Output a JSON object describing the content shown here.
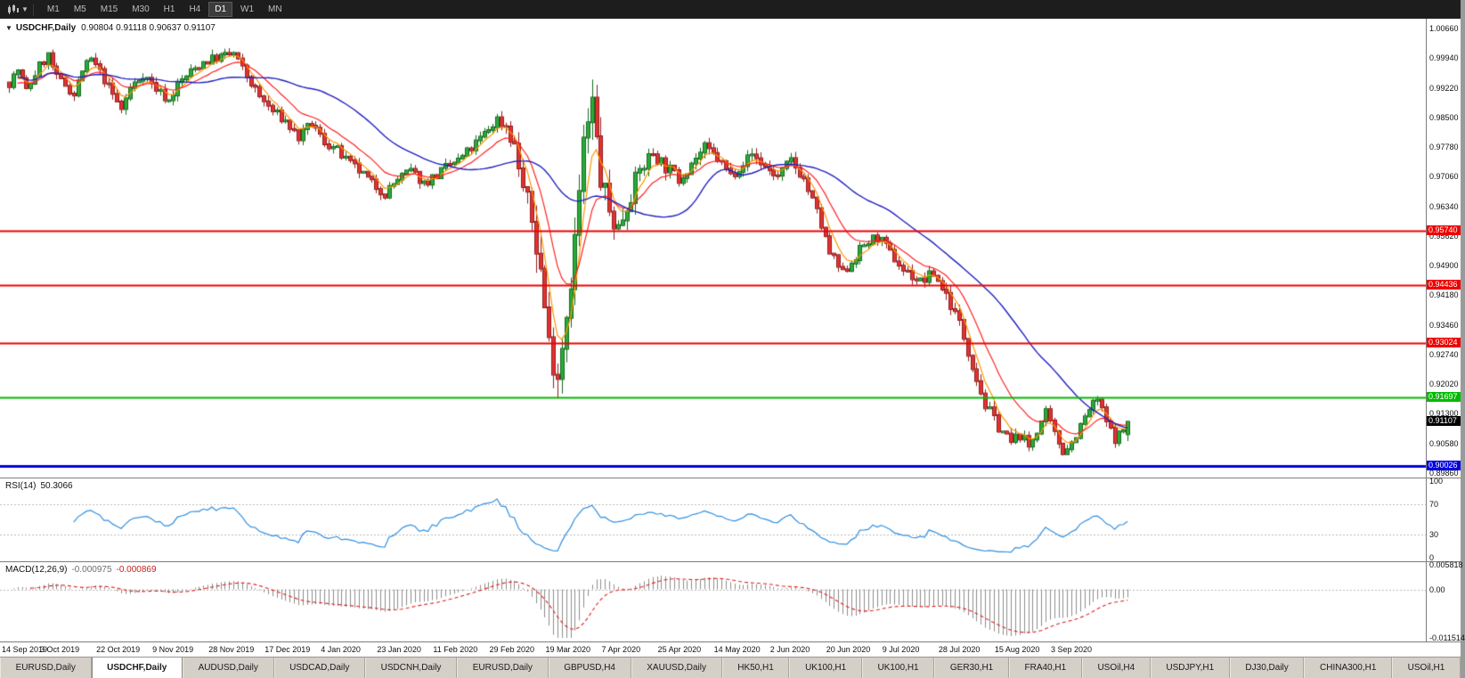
{
  "toolbar": {
    "timeframes": [
      {
        "label": "M1",
        "active": false
      },
      {
        "label": "M5",
        "active": false
      },
      {
        "label": "M15",
        "active": false
      },
      {
        "label": "M30",
        "active": false
      },
      {
        "label": "H1",
        "active": false
      },
      {
        "label": "H4",
        "active": false
      },
      {
        "label": "D1",
        "active": true
      },
      {
        "label": "W1",
        "active": false
      },
      {
        "label": "MN",
        "active": false
      }
    ]
  },
  "chart": {
    "title": "USDCHF,Daily",
    "ohlc": "0.90804 0.91118 0.90637 0.91107",
    "axis_top_price": 1.0066,
    "axis_price_step": 0.0072,
    "price_axis_labels": [
      "1.00660",
      "0.99940",
      "0.99220",
      "0.98500",
      "0.97780",
      "0.97060",
      "0.96340",
      "0.95620",
      "0.94900",
      "0.94180",
      "0.93460",
      "0.92740",
      "0.92020",
      "0.91300",
      "0.90580",
      "0.89860"
    ],
    "hlines": [
      {
        "price": 0.9574,
        "label": "0.95740",
        "color": "#ee0000",
        "width": 2
      },
      {
        "price": 0.94436,
        "label": "0.94436",
        "color": "#ee0000",
        "width": 2
      },
      {
        "price": 0.93024,
        "label": "0.93024",
        "color": "#ee0000",
        "width": 2
      },
      {
        "price": 0.91697,
        "label": "0.91697",
        "color": "#00ba00",
        "width": 2
      },
      {
        "price": 0.90026,
        "label": "0.90026",
        "color": "#0000dd",
        "width": 3
      }
    ],
    "current_price": {
      "label": "0.91107",
      "value": 0.91107,
      "bg": "#000000"
    },
    "colors": {
      "up_fill": "#2aab38",
      "up_border": "#14691e",
      "down_fill": "#e23232",
      "down_border": "#8f1d1d",
      "ma_fast": "#ff9500",
      "ma_mid": "#ff2222",
      "ma_slow": "#2020c0"
    }
  },
  "rsi": {
    "label": "RSI(14)",
    "value": "50.3066",
    "color": "#2f8fe0",
    "range": [
      0,
      100
    ],
    "levels": [
      70,
      30
    ],
    "axis": [
      {
        "label": "100",
        "value": 100
      },
      {
        "label": "70",
        "value": 70
      },
      {
        "label": "30",
        "value": 30
      },
      {
        "label": "0",
        "value": 0
      }
    ]
  },
  "macd": {
    "label": "MACD(12,26,9)",
    "value_main": "-0.000975",
    "value_signal": "-0.000869",
    "hist_color": "#8c8c8c",
    "signal_color": "#dd2020",
    "range": {
      "max": 0.005818,
      "min": -0.011514
    },
    "axis": [
      {
        "label": "0.005818",
        "value": 0.005818
      },
      {
        "label": "0.00",
        "value": 0
      },
      {
        "label": "-0.011514",
        "value": -0.011514
      }
    ]
  },
  "date_axis": [
    "14 Sep 2019",
    "3 Oct 2019",
    "22 Oct 2019",
    "9 Nov 2019",
    "28 Nov 2019",
    "17 Dec 2019",
    "4 Jan 2020",
    "23 Jan 2020",
    "11 Feb 2020",
    "29 Feb 2020",
    "19 Mar 2020",
    "7 Apr 2020",
    "25 Apr 2020",
    "14 May 2020",
    "2 Jun 2020",
    "20 Jun 2020",
    "9 Jul 2020",
    "28 Jul 2020",
    "15 Aug 2020",
    "3 Sep 2020"
  ],
  "tabs": [
    {
      "label": "EURUSD,Daily",
      "active": false
    },
    {
      "label": "USDCHF,Daily",
      "active": true
    },
    {
      "label": "AUDUSD,Daily",
      "active": false
    },
    {
      "label": "USDCAD,Daily",
      "active": false
    },
    {
      "label": "USDCNH,Daily",
      "active": false
    },
    {
      "label": "EURUSD,Daily",
      "active": false
    },
    {
      "label": "GBPUSD,H4",
      "active": false
    },
    {
      "label": "XAUUSD,Daily",
      "active": false
    },
    {
      "label": "HK50,H1",
      "active": false
    },
    {
      "label": "UK100,H1",
      "active": false
    },
    {
      "label": "UK100,H1",
      "active": false
    },
    {
      "label": "GER30,H1",
      "active": false
    },
    {
      "label": "FRA40,H1",
      "active": false
    },
    {
      "label": "USOil,H4",
      "active": false
    },
    {
      "label": "USDJPY,H1",
      "active": false
    },
    {
      "label": "DJ30,Daily",
      "active": false
    },
    {
      "label": "CHINA300,H1",
      "active": false
    },
    {
      "label": "USOil,H1",
      "active": false
    }
  ],
  "chart_data": {
    "type": "candlestick",
    "symbol": "USDCHF",
    "timeframe": "Daily",
    "candle_count": 260,
    "last_candle": {
      "open": 0.90804,
      "high": 0.91118,
      "low": 0.90637,
      "close": 0.91107
    },
    "close_waypoints": [
      [
        0,
        0.9935
      ],
      [
        2,
        0.9965
      ],
      [
        4,
        0.9915
      ],
      [
        7,
        0.9975
      ],
      [
        9,
        1.0
      ],
      [
        11,
        0.9945
      ],
      [
        13,
        0.993
      ],
      [
        15,
        0.9905
      ],
      [
        17,
        0.9965
      ],
      [
        19,
        0.999
      ],
      [
        21,
        0.996
      ],
      [
        24,
        0.9905
      ],
      [
        26,
        0.987
      ],
      [
        28,
        0.992
      ],
      [
        31,
        0.9955
      ],
      [
        34,
        0.992
      ],
      [
        37,
        0.989
      ],
      [
        39,
        0.993
      ],
      [
        42,
        0.996
      ],
      [
        45,
        0.9985
      ],
      [
        48,
        0.9995
      ],
      [
        52,
        1.0005
      ],
      [
        55,
        0.995
      ],
      [
        58,
        0.99
      ],
      [
        61,
        0.9865
      ],
      [
        64,
        0.984
      ],
      [
        67,
        0.98
      ],
      [
        70,
        0.9835
      ],
      [
        73,
        0.979
      ],
      [
        76,
        0.977
      ],
      [
        78,
        0.9745
      ],
      [
        81,
        0.972
      ],
      [
        84,
        0.969
      ],
      [
        87,
        0.9665
      ],
      [
        90,
        0.97
      ],
      [
        93,
        0.972
      ],
      [
        96,
        0.969
      ],
      [
        99,
        0.971
      ],
      [
        102,
        0.9735
      ],
      [
        104,
        0.9745
      ],
      [
        107,
        0.9775
      ],
      [
        110,
        0.981
      ],
      [
        113,
        0.9845
      ],
      [
        115,
        0.983
      ],
      [
        117,
        0.978
      ],
      [
        119,
        0.968
      ],
      [
        121,
        0.96
      ],
      [
        123,
        0.948
      ],
      [
        125,
        0.93
      ],
      [
        127,
        0.923
      ],
      [
        129,
        0.938
      ],
      [
        131,
        0.955
      ],
      [
        133,
        0.978
      ],
      [
        135,
        0.988
      ],
      [
        137,
        0.97
      ],
      [
        139,
        0.962
      ],
      [
        141,
        0.958
      ],
      [
        143,
        0.964
      ],
      [
        146,
        0.972
      ],
      [
        149,
        0.9765
      ],
      [
        152,
        0.973
      ],
      [
        155,
        0.97
      ],
      [
        158,
        0.974
      ],
      [
        161,
        0.9775
      ],
      [
        164,
        0.975
      ],
      [
        167,
        0.971
      ],
      [
        169,
        0.973
      ],
      [
        172,
        0.976
      ],
      [
        175,
        0.973
      ],
      [
        178,
        0.9705
      ],
      [
        181,
        0.9745
      ],
      [
        184,
        0.97
      ],
      [
        187,
        0.962
      ],
      [
        190,
        0.952
      ],
      [
        193,
        0.947
      ],
      [
        195,
        0.95
      ],
      [
        198,
        0.954
      ],
      [
        201,
        0.956
      ],
      [
        204,
        0.952
      ],
      [
        207,
        0.948
      ],
      [
        211,
        0.945
      ],
      [
        214,
        0.947
      ],
      [
        217,
        0.942
      ],
      [
        220,
        0.935
      ],
      [
        223,
        0.925
      ],
      [
        226,
        0.915
      ],
      [
        229,
        0.91
      ],
      [
        232,
        0.906
      ],
      [
        234,
        0.908
      ],
      [
        236,
        0.905
      ],
      [
        238,
        0.909
      ],
      [
        240,
        0.913
      ],
      [
        242,
        0.908
      ],
      [
        244,
        0.904
      ],
      [
        246,
        0.906
      ],
      [
        248,
        0.91
      ],
      [
        250,
        0.914
      ],
      [
        252,
        0.9165
      ],
      [
        254,
        0.911
      ],
      [
        256,
        0.907
      ],
      [
        258,
        0.909
      ],
      [
        259,
        0.9111
      ]
    ],
    "volatility_waypoints": [
      [
        0,
        0.0026
      ],
      [
        110,
        0.0026
      ],
      [
        117,
        0.0045
      ],
      [
        122,
        0.0085
      ],
      [
        130,
        0.0095
      ],
      [
        136,
        0.009
      ],
      [
        142,
        0.006
      ],
      [
        150,
        0.004
      ],
      [
        160,
        0.003
      ],
      [
        205,
        0.0028
      ],
      [
        218,
        0.0032
      ],
      [
        228,
        0.003
      ],
      [
        240,
        0.0026
      ],
      [
        259,
        0.0024
      ]
    ],
    "moving_averages": [
      {
        "type": "ema",
        "period": 5,
        "color": "#ff9500"
      },
      {
        "type": "ema",
        "period": 13,
        "color": "#ff2222"
      },
      {
        "type": "sma",
        "period": 34,
        "color": "#2020c0"
      }
    ],
    "indicators": [
      {
        "name": "RSI",
        "period": 14,
        "current": 50.3066
      },
      {
        "name": "MACD",
        "params": [
          12,
          26,
          9
        ],
        "current_macd": -0.000975,
        "current_signal": -0.000869
      }
    ]
  }
}
